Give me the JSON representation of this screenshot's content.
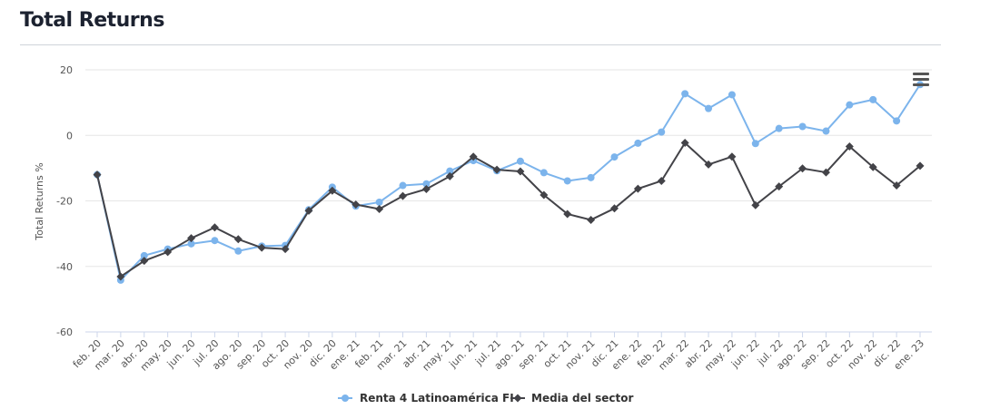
{
  "page": {
    "title": "Total Returns"
  },
  "chart_data": {
    "type": "line",
    "ylabel": "Total Returns %",
    "ylim": [
      -60,
      20
    ],
    "yticks": [
      -60,
      -40,
      -20,
      0,
      20
    ],
    "grid": true,
    "legend_position": "bottom-center",
    "categories": [
      "feb. 20",
      "mar. 20",
      "abr. 20",
      "may. 20",
      "jun. 20",
      "jul. 20",
      "ago. 20",
      "sep. 20",
      "oct. 20",
      "nov. 20",
      "dic. 20",
      "ene. 21",
      "feb. 21",
      "mar. 21",
      "abr. 21",
      "may. 21",
      "jun. 21",
      "jul. 21",
      "ago. 21",
      "sep. 21",
      "oct. 21",
      "nov. 21",
      "dic. 21",
      "ene. 22",
      "feb. 22",
      "mar. 22",
      "abr. 22",
      "may. 22",
      "jun. 22",
      "jul. 22",
      "ago. 22",
      "sep. 22",
      "oct. 22",
      "nov. 22",
      "dic. 22",
      "ene. 23"
    ],
    "series": [
      {
        "name": "Renta 4 Latinoamérica FI",
        "color": "#7cb4ec",
        "marker": "circle",
        "values": [
          -12,
          -44.2,
          -36.7,
          -34.7,
          -33.1,
          -32.1,
          -35.3,
          -33.8,
          -33.6,
          -22.7,
          -15.8,
          -21.6,
          -20.4,
          -15.3,
          -14.8,
          -10.9,
          -7.7,
          -10.8,
          -7.9,
          -11.4,
          -13.9,
          -12.9,
          -6.6,
          -2.4,
          1.0,
          12.7,
          8.2,
          12.4,
          -2.5,
          2.1,
          2.7,
          1.3,
          9.3,
          10.9,
          4.4,
          15.5
        ]
      },
      {
        "name": "Media del sector",
        "color": "#434348",
        "marker": "diamond",
        "values": [
          -12,
          -43.1,
          -38.3,
          -35.6,
          -31.4,
          -28.1,
          -31.7,
          -34.3,
          -34.7,
          -23.0,
          -16.9,
          -21.1,
          -22.5,
          -18.5,
          -16.4,
          -12.5,
          -6.5,
          -10.5,
          -11.0,
          -18.2,
          -24.0,
          -25.8,
          -22.3,
          -16.3,
          -13.9,
          -2.3,
          -8.9,
          -6.5,
          -21.3,
          -15.6,
          -10.1,
          -11.3,
          -3.4,
          -9.7,
          -15.3,
          -9.3
        ]
      }
    ]
  },
  "toolbar": {
    "menu_icon": "hamburger-menu-icon"
  }
}
